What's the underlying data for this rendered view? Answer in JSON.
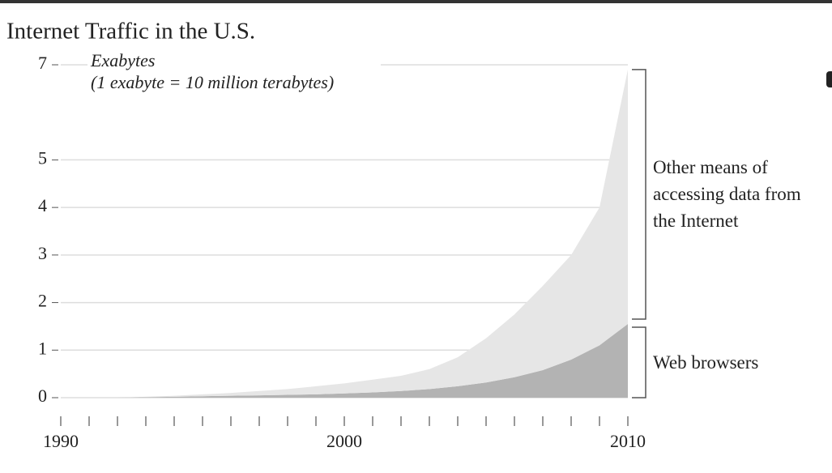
{
  "chart_data": {
    "type": "stacked_area",
    "title": "Internet Traffic in the U.S.",
    "annotations": [
      "Exabytes",
      "(1 exabyte = 10 million terabytes)"
    ],
    "x": [
      1990,
      1991,
      1992,
      1993,
      1994,
      1995,
      1996,
      1997,
      1998,
      1999,
      2000,
      2001,
      2002,
      2003,
      2004,
      2005,
      2006,
      2007,
      2008,
      2009,
      2010
    ],
    "series": [
      {
        "name": "Web browsers",
        "color": "#b3b3b3",
        "values": [
          0,
          0,
          0,
          0.01,
          0.02,
          0.03,
          0.04,
          0.05,
          0.06,
          0.07,
          0.09,
          0.11,
          0.14,
          0.18,
          0.24,
          0.32,
          0.43,
          0.58,
          0.8,
          1.1,
          1.55
        ]
      },
      {
        "name": "Other means of accessing data from the Internet",
        "color": "#e6e6e6",
        "values": [
          0,
          0,
          0,
          0.01,
          0.02,
          0.04,
          0.06,
          0.09,
          0.12,
          0.17,
          0.21,
          0.27,
          0.32,
          0.42,
          0.61,
          0.93,
          1.32,
          1.77,
          2.2,
          2.9,
          5.35
        ]
      }
    ],
    "xlim": [
      1990,
      2010
    ],
    "xticks": [
      1990,
      2000,
      2010
    ],
    "ylim": [
      0,
      7
    ],
    "yticks": [
      0,
      1,
      2,
      3,
      4,
      5,
      7
    ],
    "grid": true
  }
}
